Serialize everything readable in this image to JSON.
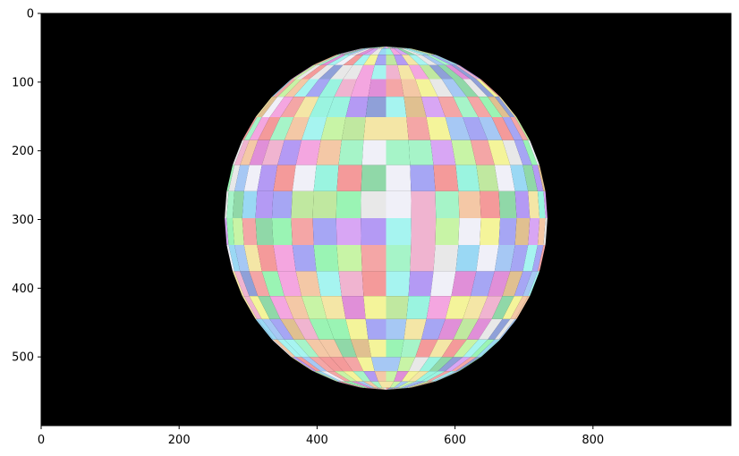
{
  "chart_data": {
    "type": "heatmap",
    "title": "",
    "xlabel": "",
    "ylabel": "",
    "xlim": [
      0,
      1000
    ],
    "ylim": [
      600,
      0
    ],
    "y_axis_inverted": true,
    "x_ticks": [
      0,
      200,
      400,
      600,
      800
    ],
    "y_ticks": [
      0,
      100,
      200,
      300,
      400,
      500
    ],
    "x_tick_labels": [
      "0",
      "200",
      "400",
      "600",
      "800"
    ],
    "y_tick_labels": [
      "0",
      "100",
      "200",
      "300",
      "400",
      "500"
    ],
    "background_color": "#000000",
    "sphere": {
      "center": [
        500,
        298
      ],
      "radius_x": 234,
      "radius_y": 250,
      "grid_rows": 20,
      "grid_cols": 20,
      "palette": [
        "#f4a6a6",
        "#a6f4c8",
        "#a6c8f4",
        "#f4e6a6",
        "#d8a6f4",
        "#a6f4f0",
        "#f4a6e0",
        "#c8f4a6",
        "#f4c8a6",
        "#a6a6f4",
        "#e8e8e8",
        "#f49a9a",
        "#9af4b4",
        "#9ad8f4",
        "#f4f49a",
        "#b49af4",
        "#9af4e0",
        "#f0b4d0",
        "#c0e8a0",
        "#e0c090",
        "#8fa0d8",
        "#f0f0f8",
        "#e08fd8",
        "#90d8a8"
      ]
    },
    "grid": false,
    "legend": "none"
  }
}
